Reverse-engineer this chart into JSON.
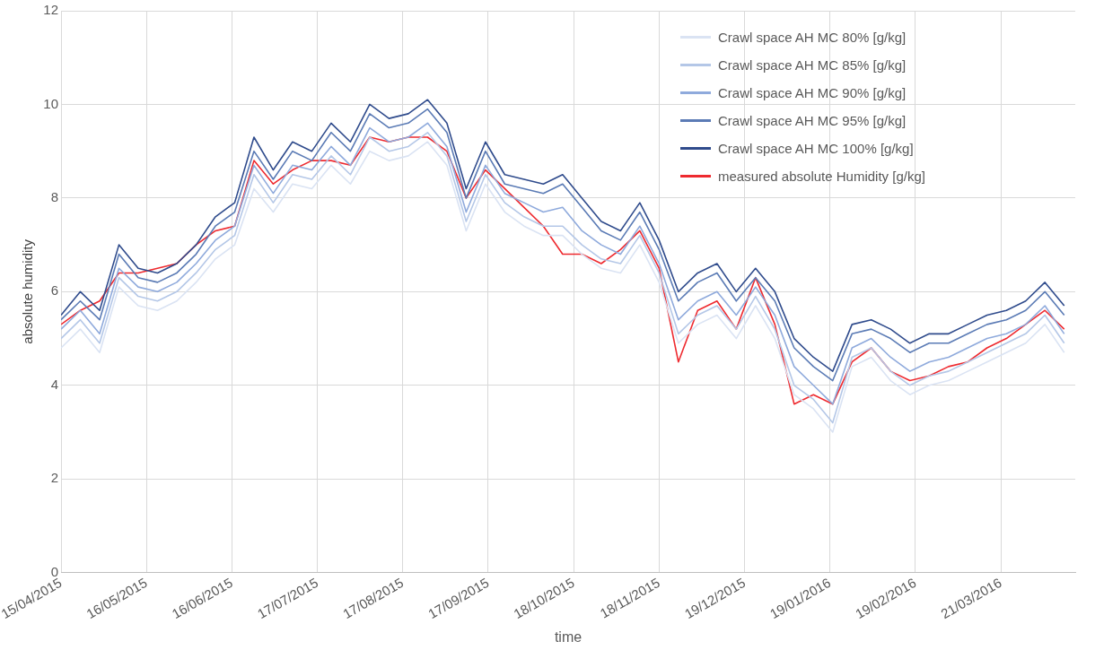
{
  "chart_data": {
    "type": "line",
    "xlabel": "time",
    "ylabel": "absolute humidity",
    "x": [
      "2015-04-15",
      "2015-04-22",
      "2015-04-29",
      "2015-05-06",
      "2015-05-13",
      "2015-05-20",
      "2015-05-27",
      "2015-06-03",
      "2015-06-10",
      "2015-06-17",
      "2015-06-24",
      "2015-07-01",
      "2015-07-08",
      "2015-07-15",
      "2015-07-22",
      "2015-07-29",
      "2015-08-05",
      "2015-08-12",
      "2015-08-19",
      "2015-08-26",
      "2015-09-02",
      "2015-09-09",
      "2015-09-16",
      "2015-09-23",
      "2015-09-30",
      "2015-10-07",
      "2015-10-14",
      "2015-10-21",
      "2015-10-28",
      "2015-11-04",
      "2015-11-11",
      "2015-11-18",
      "2015-11-25",
      "2015-12-02",
      "2015-12-09",
      "2015-12-16",
      "2015-12-23",
      "2015-12-30",
      "2016-01-06",
      "2016-01-13",
      "2016-01-20",
      "2016-01-27",
      "2016-02-03",
      "2016-02-10",
      "2016-02-17",
      "2016-02-24",
      "2016-03-02",
      "2016-03-09",
      "2016-03-16",
      "2016-03-23",
      "2016-03-30",
      "2016-04-06",
      "2016-04-13"
    ],
    "series": [
      {
        "name": "Crawl space AH MC 80% [g/kg]",
        "color": "#dae3f3",
        "values": [
          4.8,
          5.2,
          4.7,
          6.1,
          5.7,
          5.6,
          5.8,
          6.2,
          6.7,
          7.0,
          8.2,
          7.7,
          8.3,
          8.2,
          8.7,
          8.3,
          9.0,
          8.8,
          8.9,
          9.2,
          8.7,
          7.3,
          8.3,
          7.7,
          7.4,
          7.2,
          7.2,
          6.8,
          6.5,
          6.4,
          7.0,
          6.2,
          4.9,
          5.3,
          5.5,
          5.0,
          5.7,
          5.0,
          3.8,
          3.5,
          3.0,
          4.4,
          4.6,
          4.1,
          3.8,
          4.0,
          4.1,
          4.3,
          4.5,
          4.7,
          4.9,
          5.3,
          4.7
        ]
      },
      {
        "name": "Crawl space AH MC 85% [g/kg]",
        "color": "#b4c7e7",
        "values": [
          5.0,
          5.4,
          4.9,
          6.3,
          5.9,
          5.8,
          6.0,
          6.4,
          6.9,
          7.2,
          8.5,
          7.9,
          8.5,
          8.4,
          8.9,
          8.5,
          9.3,
          9.0,
          9.1,
          9.4,
          8.9,
          7.5,
          8.5,
          7.9,
          7.6,
          7.4,
          7.4,
          7.0,
          6.7,
          6.6,
          7.2,
          6.4,
          5.1,
          5.5,
          5.7,
          5.2,
          5.9,
          5.2,
          4.0,
          3.7,
          3.2,
          4.6,
          4.8,
          4.3,
          4.0,
          4.2,
          4.3,
          4.5,
          4.7,
          4.9,
          5.1,
          5.5,
          4.9
        ]
      },
      {
        "name": "Crawl space AH MC 90% [g/kg]",
        "color": "#8faadc",
        "values": [
          5.2,
          5.6,
          5.1,
          6.5,
          6.1,
          6.0,
          6.2,
          6.6,
          7.1,
          7.4,
          8.7,
          8.1,
          8.7,
          8.6,
          9.1,
          8.7,
          9.5,
          9.2,
          9.3,
          9.6,
          9.1,
          7.7,
          8.7,
          8.1,
          7.9,
          7.7,
          7.8,
          7.3,
          7.0,
          6.8,
          7.4,
          6.6,
          5.4,
          5.8,
          6.0,
          5.5,
          6.1,
          5.5,
          4.4,
          4.0,
          3.6,
          4.8,
          5.0,
          4.6,
          4.3,
          4.5,
          4.6,
          4.8,
          5.0,
          5.1,
          5.3,
          5.7,
          5.1
        ]
      },
      {
        "name": "Crawl space AH MC 95% [g/kg]",
        "color": "#5b7bb5",
        "values": [
          5.4,
          5.8,
          5.4,
          6.8,
          6.3,
          6.2,
          6.4,
          6.8,
          7.4,
          7.7,
          9.0,
          8.4,
          9.0,
          8.8,
          9.4,
          9.0,
          9.8,
          9.5,
          9.6,
          9.9,
          9.4,
          8.0,
          9.0,
          8.3,
          8.2,
          8.1,
          8.3,
          7.8,
          7.3,
          7.1,
          7.7,
          6.9,
          5.8,
          6.2,
          6.4,
          5.8,
          6.3,
          5.8,
          4.8,
          4.4,
          4.1,
          5.1,
          5.2,
          5.0,
          4.7,
          4.9,
          4.9,
          5.1,
          5.3,
          5.4,
          5.6,
          6.0,
          5.5
        ]
      },
      {
        "name": "Crawl space AH MC 100% [g/kg]",
        "color": "#2f4b8c",
        "values": [
          5.5,
          6.0,
          5.6,
          7.0,
          6.5,
          6.4,
          6.6,
          7.0,
          7.6,
          7.9,
          9.3,
          8.6,
          9.2,
          9.0,
          9.6,
          9.2,
          10.0,
          9.7,
          9.8,
          10.1,
          9.6,
          8.2,
          9.2,
          8.5,
          8.4,
          8.3,
          8.5,
          8.0,
          7.5,
          7.3,
          7.9,
          7.1,
          6.0,
          6.4,
          6.6,
          6.0,
          6.5,
          6.0,
          5.0,
          4.6,
          4.3,
          5.3,
          5.4,
          5.2,
          4.9,
          5.1,
          5.1,
          5.3,
          5.5,
          5.6,
          5.8,
          6.2,
          5.7
        ]
      },
      {
        "name": "measured absolute Humidity [g/kg]",
        "color": "#ee2a2f",
        "values": [
          5.3,
          5.6,
          5.8,
          6.4,
          6.4,
          6.5,
          6.6,
          7.0,
          7.3,
          7.4,
          8.8,
          8.3,
          8.6,
          8.8,
          8.8,
          8.7,
          9.3,
          9.2,
          9.3,
          9.3,
          9.0,
          8.0,
          8.6,
          8.2,
          7.8,
          7.4,
          6.8,
          6.8,
          6.6,
          6.9,
          7.3,
          6.5,
          4.5,
          5.6,
          5.8,
          5.2,
          6.3,
          5.3,
          3.6,
          3.8,
          3.6,
          4.5,
          4.8,
          4.3,
          4.1,
          4.2,
          4.4,
          4.5,
          4.8,
          5.0,
          5.3,
          5.6,
          5.2
        ]
      }
    ],
    "xlim": [
      "2015-04-15",
      "2016-04-17"
    ],
    "xticks": [
      {
        "value": "2015-04-15",
        "label": "15/04/2015"
      },
      {
        "value": "2015-05-16",
        "label": "16/05/2015"
      },
      {
        "value": "2015-06-16",
        "label": "16/06/2015"
      },
      {
        "value": "2015-07-17",
        "label": "17/07/2015"
      },
      {
        "value": "2015-08-17",
        "label": "17/08/2015"
      },
      {
        "value": "2015-09-17",
        "label": "17/09/2015"
      },
      {
        "value": "2015-10-18",
        "label": "18/10/2015"
      },
      {
        "value": "2015-11-18",
        "label": "18/11/2015"
      },
      {
        "value": "2015-12-19",
        "label": "19/12/2015"
      },
      {
        "value": "2016-01-19",
        "label": "19/01/2016"
      },
      {
        "value": "2016-02-19",
        "label": "19/02/2016"
      },
      {
        "value": "2016-03-21",
        "label": "21/03/2016"
      }
    ],
    "ylim": [
      0,
      12
    ],
    "yticks": [
      0,
      2,
      4,
      6,
      8,
      10,
      12
    ],
    "grid": true,
    "legend": "top right",
    "marker": "none",
    "line_style": "solid"
  }
}
